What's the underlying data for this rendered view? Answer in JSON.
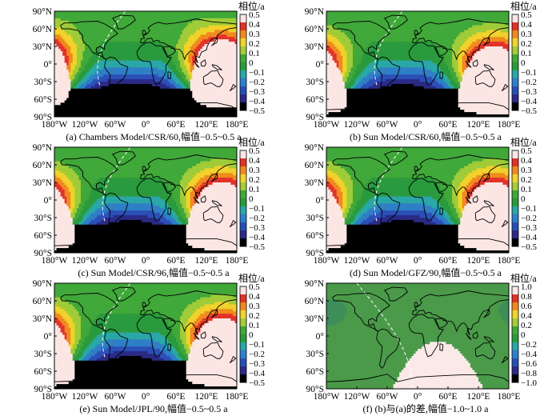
{
  "chart_data": [
    {
      "type": "heatmap",
      "caption": "(a) Chambers Model/CSR/60,幅值−0.5~0.5 a",
      "colorbar": {
        "title": "相位/a",
        "ticks": [
          "0.5",
          "0.4",
          "0.3",
          "0.2",
          "0.1",
          "0",
          "−0.1",
          "−0.2",
          "−0.3",
          "−0.4",
          "−0.5"
        ],
        "range": [
          -0.5,
          0.5
        ]
      },
      "yticks": [
        "90°N",
        "60°N",
        "30°N",
        "0°",
        "30°S",
        "60°S",
        "90°S"
      ],
      "xticks": [
        "180°W",
        "120°W",
        "60°W",
        "0°",
        "60°E",
        "120°E",
        "180°E"
      ],
      "pattern": {
        "kind": "phase",
        "center_lon": 150,
        "center_lat": -20,
        "neg_lon": -90,
        "neg_lat": -90,
        "terminator_shift": 0
      }
    },
    {
      "type": "heatmap",
      "caption": "(b) Sun Model/CSR/60,幅值−0.5~0.5 a",
      "colorbar": {
        "title": "相位/a",
        "ticks": [
          "0.5",
          "0.4",
          "0.3",
          "0.2",
          "0.1",
          "0",
          "−0.1",
          "−0.2",
          "−0.3",
          "−0.4",
          "−0.5"
        ],
        "range": [
          -0.5,
          0.5
        ]
      },
      "yticks": [
        "90°N",
        "60°N",
        "30°N",
        "0°",
        "30°S",
        "60°S",
        "90°S"
      ],
      "xticks": [
        "180°W",
        "120°W",
        "60°W",
        "0°",
        "60°E",
        "120°E",
        "180°E"
      ],
      "pattern": {
        "kind": "phase",
        "center_lon": 150,
        "center_lat": -30,
        "neg_lon": -120,
        "neg_lat": -90,
        "terminator_shift": 10
      }
    },
    {
      "type": "heatmap",
      "caption": "(c) Sun Model/CSR/96,幅值−0.5~0.5 a",
      "colorbar": {
        "title": "相位/a",
        "ticks": [
          "0.5",
          "0.4",
          "0.3",
          "0.2",
          "0.1",
          "0",
          "−0.1",
          "−0.2",
          "−0.3",
          "−0.4",
          "−0.5"
        ],
        "range": [
          -0.5,
          0.5
        ]
      },
      "yticks": [
        "90°N",
        "60°N",
        "30°N",
        "0°",
        "30°S",
        "60°S",
        "90°S"
      ],
      "xticks": [
        "180°W",
        "120°W",
        "60°W",
        "0°",
        "60°E",
        "120°E",
        "180°E"
      ],
      "pattern": {
        "kind": "phase",
        "center_lon": 150,
        "center_lat": -30,
        "neg_lon": -120,
        "neg_lat": -90,
        "terminator_shift": 10
      }
    },
    {
      "type": "heatmap",
      "caption": "(d) Sun Model/GFZ/90,幅值−0.5~0.5 a",
      "colorbar": {
        "title": "相位/a",
        "ticks": [
          "0.5",
          "0.4",
          "0.3",
          "0.2",
          "0.1",
          "0",
          "−0.1",
          "−0.2",
          "−0.3",
          "−0.4",
          "−0.5"
        ],
        "range": [
          -0.5,
          0.5
        ]
      },
      "yticks": [
        "90°N",
        "60°N",
        "30°N",
        "0°",
        "30°S",
        "60°S",
        "90°S"
      ],
      "xticks": [
        "180°W",
        "120°W",
        "60°W",
        "0°",
        "60°E",
        "120°E",
        "180°E"
      ],
      "pattern": {
        "kind": "phase",
        "center_lon": 150,
        "center_lat": -30,
        "neg_lon": -120,
        "neg_lat": -90,
        "terminator_shift": 10
      }
    },
    {
      "type": "heatmap",
      "caption": "(e) Sun Model/JPL/90,幅值−0.5~0.5 a",
      "colorbar": {
        "title": "相位/a",
        "ticks": [
          "0.5",
          "0.4",
          "0.3",
          "0.2",
          "0.1",
          "0",
          "−0.1",
          "−0.2",
          "−0.3",
          "−0.4",
          "−0.5"
        ],
        "range": [
          -0.5,
          0.5
        ]
      },
      "yticks": [
        "90°N",
        "60°N",
        "30°N",
        "0°",
        "30°S",
        "60°S",
        "90°S"
      ],
      "xticks": [
        "180°W",
        "120°W",
        "60°W",
        "0°",
        "60°E",
        "120°E",
        "180°E"
      ],
      "pattern": {
        "kind": "phase",
        "center_lon": 150,
        "center_lat": -30,
        "neg_lon": -120,
        "neg_lat": -90,
        "terminator_shift": 10
      }
    },
    {
      "type": "heatmap",
      "caption": "(f) (b)与(a)的差,幅值−1.0~1.0 a",
      "colorbar": {
        "title": "相位/a",
        "ticks": [
          "1.0",
          "0.8",
          "0.6",
          "0.4",
          "0.2",
          "0",
          "−0.2",
          "−0.4",
          "−0.6",
          "−0.8",
          "−1.0"
        ],
        "range": [
          -1.0,
          1.0
        ]
      },
      "yticks": [
        "90°N",
        "60°N",
        "30°N",
        "0°",
        "30°S",
        "60°S",
        "90°S"
      ],
      "xticks": [
        "180°W",
        "120°W",
        "60°W",
        "0°",
        "60°E",
        "120°E",
        "180°E"
      ],
      "pattern": {
        "kind": "diff"
      }
    }
  ],
  "colors": {
    "scale": [
      "#000000",
      "#2b2a86",
      "#2c4fb7",
      "#2f7fc7",
      "#2aa7a8",
      "#2a9a3e",
      "#41a83a",
      "#9fcc38",
      "#f1d22a",
      "#f08a1e",
      "#e4322b",
      "#fbe6e4"
    ],
    "diff_light": "#fbe9e8",
    "diff_base": "#4a9a4a",
    "coast": "#000000",
    "terminator": "#ffffff"
  }
}
